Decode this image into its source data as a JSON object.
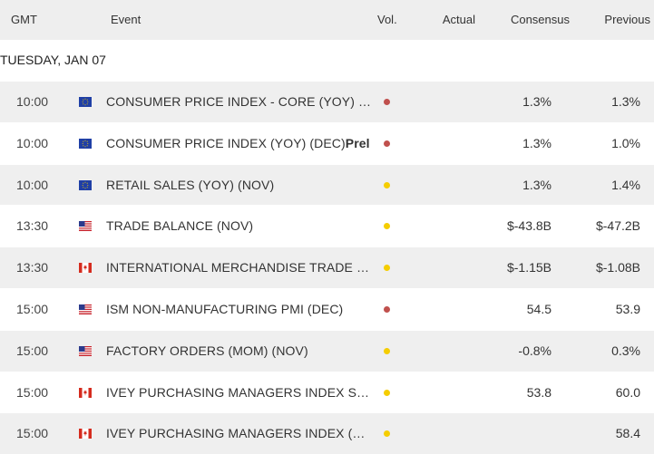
{
  "header": {
    "gmt": "GMT",
    "event": "Event",
    "vol": "Vol.",
    "actual": "Actual",
    "consensus": "Consensus",
    "previous": "Previous"
  },
  "date_label": "TUESDAY, JAN 07",
  "colors": {
    "high_volatility": "#c0504d",
    "medium_volatility": "#f5cd00",
    "row_shade": "#efefef",
    "header_bg": "#eeeeee"
  },
  "rows": [
    {
      "time": "10:00",
      "flag": "eu-flag-icon",
      "event": "CONSUMER PRICE INDEX - CORE (YOY) (D...",
      "event_suffix": "",
      "vol": "high",
      "actual": "",
      "consensus": "1.3%",
      "previous": "1.3%"
    },
    {
      "time": "10:00",
      "flag": "eu-flag-icon",
      "event": "CONSUMER PRICE INDEX (YOY) (DEC)",
      "event_suffix": "Prel",
      "vol": "high",
      "actual": "",
      "consensus": "1.3%",
      "previous": "1.0%"
    },
    {
      "time": "10:00",
      "flag": "eu-flag-icon",
      "event": "RETAIL SALES (YOY) (NOV)",
      "event_suffix": "",
      "vol": "medium",
      "actual": "",
      "consensus": "1.3%",
      "previous": "1.4%"
    },
    {
      "time": "13:30",
      "flag": "us-flag-icon",
      "event": "TRADE BALANCE (NOV)",
      "event_suffix": "",
      "vol": "medium",
      "actual": "",
      "consensus": "$-43.8B",
      "previous": "$-47.2B"
    },
    {
      "time": "13:30",
      "flag": "ca-flag-icon",
      "event": "INTERNATIONAL MERCHANDISE TRADE (...",
      "event_suffix": "",
      "vol": "medium",
      "actual": "",
      "consensus": "$-1.15B",
      "previous": "$-1.08B"
    },
    {
      "time": "15:00",
      "flag": "us-flag-icon",
      "event": "ISM NON-MANUFACTURING PMI (DEC)",
      "event_suffix": "",
      "vol": "high",
      "actual": "",
      "consensus": "54.5",
      "previous": "53.9"
    },
    {
      "time": "15:00",
      "flag": "us-flag-icon",
      "event": "FACTORY ORDERS (MOM) (NOV)",
      "event_suffix": "",
      "vol": "medium",
      "actual": "",
      "consensus": "-0.8%",
      "previous": "0.3%"
    },
    {
      "time": "15:00",
      "flag": "ca-flag-icon",
      "event": "IVEY PURCHASING MANAGERS INDEX S.A...",
      "event_suffix": "",
      "vol": "medium",
      "actual": "",
      "consensus": "53.8",
      "previous": "60.0"
    },
    {
      "time": "15:00",
      "flag": "ca-flag-icon",
      "event": "IVEY PURCHASING MANAGERS INDEX (DE...",
      "event_suffix": "",
      "vol": "medium",
      "actual": "",
      "consensus": "",
      "previous": "58.4"
    }
  ]
}
